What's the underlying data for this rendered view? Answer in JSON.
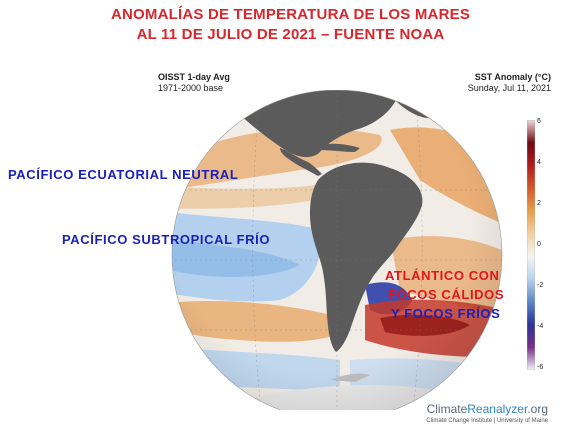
{
  "title": {
    "line1": "ANOMALÍAS DE TEMPERATURA DE LOS MARES",
    "line2": "AL 11 DE JULIO DE 2021 – FUENTE NOAA"
  },
  "meta_left": {
    "dataset": "OISST 1-day Avg",
    "base": "1971-2000 base"
  },
  "meta_right": {
    "variable": "SST Anomaly (°C)",
    "date": "Sunday, Jul 11, 2021"
  },
  "labels": {
    "pacifico_ecuatorial": "PACÍFICO  ECUATORIAL   NEUTRAL",
    "pacifico_subtropical": "PACÍFICO  SUBTROPICAL  FRÍO",
    "atlantico_line1": "ATLÁNTICO CON",
    "atlantico_line2": "FOCOS CÁLIDOS",
    "atlantico_line3": "Y FOCOS FRÍOS"
  },
  "colorbar": {
    "ticks": [
      "6",
      "4",
      "2",
      "0",
      "-2",
      "-4",
      "-6"
    ],
    "colors": [
      "#f4f1f7",
      "#7a2f86",
      "#2b3596",
      "#5d86c8",
      "#b9d3ef",
      "#f4f4f4",
      "#f3d0a3",
      "#e79d4c",
      "#d35a2a",
      "#b01d1d",
      "#6e0a12",
      "#f0d8dc"
    ]
  },
  "brand": {
    "part1": "Climate",
    "part2": "Reanalyzer",
    "part3": ".org",
    "subtitle": "Climate Change Institute | University of Maine"
  },
  "colors": {
    "title": "#d9262b",
    "label_blue": "#1a21b8",
    "label_red": "#e0161d",
    "land": "#5b5b5b",
    "ocean_neutral": "#f1ece6",
    "ocean_warm": "#e9a05a",
    "ocean_cold": "#9fc4ea"
  }
}
